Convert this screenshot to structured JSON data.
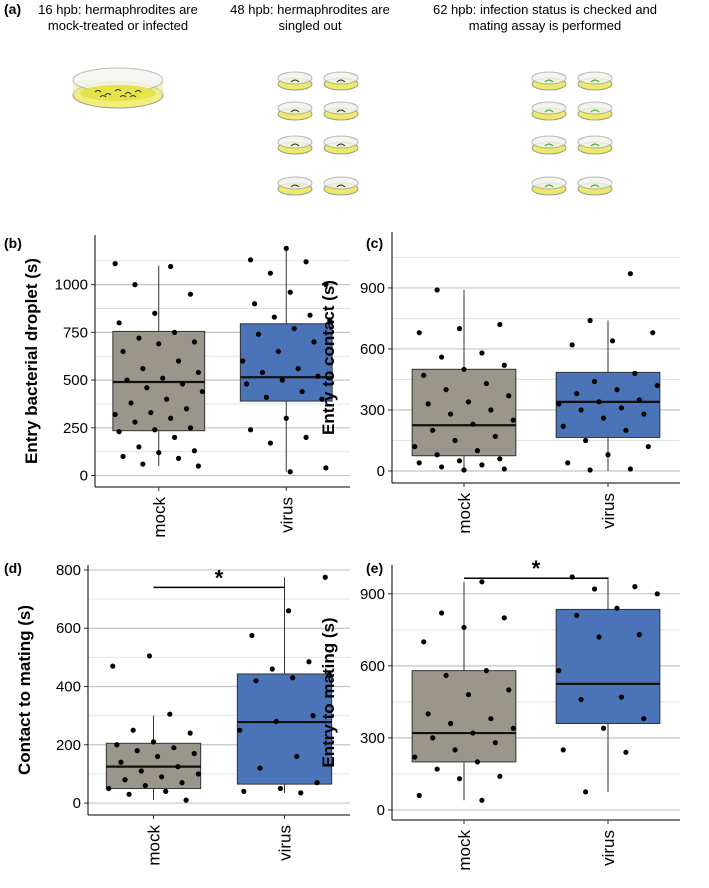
{
  "schematic": {
    "label": "(a)",
    "steps": [
      [
        "16 hpb: hermaphrodites are",
        "mock-treated or infected"
      ],
      [
        "48 hpb: hermaphrodites are",
        "singled out"
      ],
      [
        "62 hpb: infection status is checked and",
        "mating assay is performed"
      ]
    ]
  },
  "chart_data": [
    {
      "type": "box",
      "panel": "(b)",
      "ylabel": "Entry bacterial droplet (s)",
      "categories": [
        "mock",
        "virus"
      ],
      "colors": [
        "#9b968c",
        "#4a73b8"
      ],
      "ylim": [
        -60,
        1260
      ],
      "yticks": [
        0,
        250,
        500,
        750,
        1000
      ],
      "grid": true,
      "boxes": [
        {
          "min": 50,
          "q1": 235,
          "median": 490,
          "q3": 755,
          "max": 1100
        },
        {
          "min": 20,
          "q1": 390,
          "median": 515,
          "q3": 795,
          "max": 1180
        }
      ],
      "points": [
        [
          1110,
          1095,
          1000,
          950,
          850,
          800,
          750,
          720,
          700,
          690,
          650,
          600,
          560,
          540,
          510,
          500,
          480,
          460,
          440,
          400,
          380,
          350,
          330,
          320,
          300,
          280,
          250,
          240,
          230,
          200,
          150,
          130,
          120,
          100,
          90,
          60,
          50
        ],
        [
          1190,
          1130,
          1120,
          1060,
          1000,
          960,
          900,
          840,
          830,
          810,
          770,
          740,
          700,
          650,
          600,
          560,
          540,
          520,
          500,
          480,
          440,
          410,
          400,
          300,
          240,
          200,
          170,
          40,
          20
        ]
      ]
    },
    {
      "type": "box",
      "panel": "(c)",
      "ylabel": "Entry to contact (s)",
      "categories": [
        "mock",
        "virus"
      ],
      "colors": [
        "#9b968c",
        "#4a73b8"
      ],
      "ylim": [
        -59,
        1175
      ],
      "yticks": [
        0,
        300,
        600,
        900
      ],
      "grid": true,
      "boxes": [
        {
          "min": 0,
          "q1": 75,
          "median": 225,
          "q3": 500,
          "max": 890
        },
        {
          "min": 0,
          "q1": 165,
          "median": 340,
          "q3": 485,
          "max": 740
        }
      ],
      "points": [
        [
          890,
          720,
          700,
          680,
          580,
          560,
          520,
          500,
          470,
          430,
          400,
          370,
          340,
          330,
          300,
          280,
          250,
          230,
          200,
          170,
          150,
          120,
          100,
          80,
          60,
          50,
          40,
          30,
          20,
          10,
          5
        ],
        [
          970,
          740,
          680,
          640,
          620,
          480,
          440,
          420,
          400,
          380,
          350,
          340,
          330,
          310,
          300,
          280,
          260,
          220,
          200,
          150,
          120,
          80,
          40,
          10,
          5
        ]
      ]
    },
    {
      "type": "box",
      "panel": "(d)",
      "ylabel": "Contact to mating (s)",
      "categories": [
        "mock",
        "virus"
      ],
      "colors": [
        "#9b968c",
        "#4a73b8"
      ],
      "ylim": [
        -41,
        817
      ],
      "yticks": [
        0,
        200,
        400,
        600,
        800
      ],
      "grid": true,
      "boxes": [
        {
          "min": 10,
          "q1": 50,
          "median": 125,
          "q3": 205,
          "max": 300
        },
        {
          "min": 35,
          "q1": 65,
          "median": 278,
          "q3": 443,
          "max": 775
        }
      ],
      "points": [
        [
          505,
          470,
          305,
          250,
          240,
          210,
          200,
          190,
          180,
          170,
          160,
          140,
          125,
          110,
          100,
          90,
          80,
          70,
          60,
          50,
          40,
          30,
          10
        ],
        [
          775,
          660,
          575,
          485,
          460,
          440,
          430,
          420,
          300,
          280,
          250,
          160,
          120,
          70,
          50,
          40,
          35
        ]
      ],
      "significance": {
        "label": "*",
        "value": 740
      }
    },
    {
      "type": "box",
      "panel": "(e)",
      "ylabel": "Entry to mating (s)",
      "categories": [
        "mock",
        "virus"
      ],
      "colors": [
        "#9b968c",
        "#4a73b8"
      ],
      "ylim": [
        -42,
        1020
      ],
      "yticks": [
        0,
        300,
        600,
        900
      ],
      "grid": true,
      "boxes": [
        {
          "min": 40,
          "q1": 200,
          "median": 320,
          "q3": 580,
          "max": 950
        },
        {
          "min": 75,
          "q1": 360,
          "median": 525,
          "q3": 835,
          "max": 970
        }
      ],
      "points": [
        [
          950,
          820,
          800,
          760,
          700,
          580,
          560,
          500,
          480,
          400,
          380,
          360,
          340,
          320,
          300,
          280,
          250,
          220,
          200,
          170,
          140,
          130,
          60,
          40
        ],
        [
          970,
          930,
          920,
          900,
          840,
          810,
          730,
          720,
          580,
          470,
          460,
          380,
          340,
          250,
          240,
          75
        ]
      ],
      "significance": {
        "label": "*",
        "value": 965
      }
    }
  ]
}
